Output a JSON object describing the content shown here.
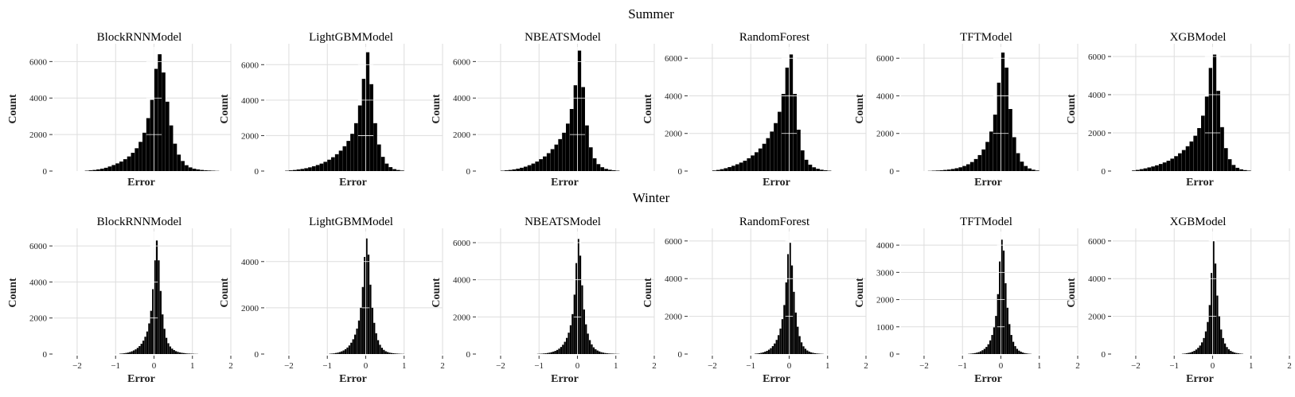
{
  "figure": {
    "row_titles": [
      "Summer",
      "Winter"
    ]
  },
  "chart_data": [
    {
      "type": "bar",
      "row": "Summer",
      "title": "BlockRNNModel",
      "xlabel": "Error",
      "ylabel": "Count",
      "ylim": [
        0,
        6800
      ],
      "yticks": [
        0,
        2000,
        4000,
        6000
      ],
      "xlim": [
        -2.6,
        2.0
      ],
      "xticks": [],
      "bin_width": 0.1,
      "bin_centers": [
        -1.75,
        -1.65,
        -1.55,
        -1.45,
        -1.35,
        -1.25,
        -1.15,
        -1.05,
        -0.95,
        -0.85,
        -0.75,
        -0.65,
        -0.55,
        -0.45,
        -0.35,
        -0.25,
        -0.15,
        -0.05,
        0.05,
        0.15,
        0.25,
        0.35,
        0.45,
        0.55,
        0.65,
        0.75,
        0.85,
        0.95,
        1.05,
        1.15,
        1.25,
        1.35,
        1.45,
        1.55,
        1.65
      ],
      "values": [
        20,
        40,
        60,
        90,
        130,
        180,
        250,
        330,
        420,
        520,
        650,
        800,
        1000,
        1250,
        1600,
        2100,
        2900,
        3900,
        5600,
        6400,
        5400,
        3800,
        2500,
        1500,
        900,
        550,
        320,
        200,
        130,
        90,
        60,
        40,
        30,
        20,
        10
      ]
    },
    {
      "type": "bar",
      "row": "Summer",
      "title": "LightGBMModel",
      "xlabel": "Error",
      "ylabel": "Count",
      "ylim": [
        0,
        7000
      ],
      "yticks": [
        0,
        2000,
        4000,
        6000
      ],
      "xlim": [
        -2.6,
        2.0
      ],
      "xticks": [],
      "bin_width": 0.1,
      "bin_centers": [
        -2.05,
        -1.95,
        -1.85,
        -1.75,
        -1.65,
        -1.55,
        -1.45,
        -1.35,
        -1.25,
        -1.15,
        -1.05,
        -0.95,
        -0.85,
        -0.75,
        -0.65,
        -0.55,
        -0.45,
        -0.35,
        -0.25,
        -0.15,
        -0.05,
        0.05,
        0.15,
        0.25,
        0.35,
        0.45,
        0.55,
        0.65,
        0.75,
        0.85,
        0.95
      ],
      "values": [
        20,
        40,
        60,
        90,
        120,
        160,
        210,
        270,
        340,
        420,
        520,
        640,
        780,
        950,
        1150,
        1400,
        1700,
        2100,
        2700,
        3700,
        5200,
        6700,
        4900,
        2700,
        1500,
        800,
        420,
        220,
        110,
        60,
        30
      ]
    },
    {
      "type": "bar",
      "row": "Summer",
      "title": "NBEATSModel",
      "xlabel": "Error",
      "ylabel": "Count",
      "ylim": [
        0,
        6800
      ],
      "yticks": [
        0,
        2000,
        4000,
        6000
      ],
      "xlim": [
        -2.6,
        2.0
      ],
      "xticks": [],
      "bin_width": 0.1,
      "bin_centers": [
        -1.95,
        -1.85,
        -1.75,
        -1.65,
        -1.55,
        -1.45,
        -1.35,
        -1.25,
        -1.15,
        -1.05,
        -0.95,
        -0.85,
        -0.75,
        -0.65,
        -0.55,
        -0.45,
        -0.35,
        -0.25,
        -0.15,
        -0.05,
        0.05,
        0.15,
        0.25,
        0.35,
        0.45,
        0.55,
        0.65,
        0.75,
        0.85,
        0.95,
        1.05
      ],
      "values": [
        20,
        40,
        60,
        90,
        130,
        180,
        240,
        320,
        410,
        520,
        650,
        800,
        980,
        1200,
        1450,
        1750,
        2100,
        2600,
        3400,
        4700,
        6600,
        4600,
        2500,
        1300,
        700,
        380,
        210,
        120,
        70,
        40,
        20
      ]
    },
    {
      "type": "bar",
      "row": "Summer",
      "title": "RandomForest",
      "xlabel": "Error",
      "ylabel": "Count",
      "ylim": [
        0,
        6600
      ],
      "yticks": [
        0,
        2000,
        4000,
        6000
      ],
      "xlim": [
        -2.6,
        2.0
      ],
      "xticks": [],
      "bin_width": 0.1,
      "bin_centers": [
        -1.95,
        -1.85,
        -1.75,
        -1.65,
        -1.55,
        -1.45,
        -1.35,
        -1.25,
        -1.15,
        -1.05,
        -0.95,
        -0.85,
        -0.75,
        -0.65,
        -0.55,
        -0.45,
        -0.35,
        -0.25,
        -0.15,
        -0.05,
        0.05,
        0.15,
        0.25,
        0.35,
        0.45,
        0.55,
        0.65,
        0.75,
        0.85,
        0.95,
        1.05
      ],
      "values": [
        30,
        60,
        100,
        150,
        210,
        280,
        360,
        450,
        550,
        680,
        830,
        1000,
        1200,
        1450,
        1750,
        2100,
        2550,
        3150,
        4100,
        5500,
        6200,
        4100,
        2200,
        1100,
        600,
        340,
        200,
        120,
        70,
        40,
        20
      ]
    },
    {
      "type": "bar",
      "row": "Summer",
      "title": "TFTModel",
      "xlabel": "Error",
      "ylabel": "Count",
      "ylim": [
        0,
        6600
      ],
      "yticks": [
        0,
        2000,
        4000,
        6000
      ],
      "xlim": [
        -2.6,
        2.0
      ],
      "xticks": [],
      "bin_width": 0.1,
      "bin_centers": [
        -1.85,
        -1.75,
        -1.65,
        -1.55,
        -1.45,
        -1.35,
        -1.25,
        -1.15,
        -1.05,
        -0.95,
        -0.85,
        -0.75,
        -0.65,
        -0.55,
        -0.45,
        -0.35,
        -0.25,
        -0.15,
        -0.05,
        0.05,
        0.15,
        0.25,
        0.35,
        0.45,
        0.55,
        0.65,
        0.75,
        0.85,
        0.95
      ],
      "values": [
        10,
        20,
        30,
        40,
        60,
        80,
        110,
        150,
        200,
        270,
        360,
        480,
        640,
        850,
        1150,
        1550,
        2100,
        3000,
        4700,
        6300,
        5500,
        3300,
        1800,
        950,
        500,
        270,
        140,
        70,
        30
      ]
    },
    {
      "type": "bar",
      "row": "Summer",
      "title": "XGBModel",
      "xlabel": "Error",
      "ylabel": "Count",
      "ylim": [
        0,
        6500
      ],
      "yticks": [
        0,
        2000,
        4000,
        6000
      ],
      "xlim": [
        -2.6,
        2.0
      ],
      "xticks": [],
      "bin_width": 0.1,
      "bin_centers": [
        -2.05,
        -1.95,
        -1.85,
        -1.75,
        -1.65,
        -1.55,
        -1.45,
        -1.35,
        -1.25,
        -1.15,
        -1.05,
        -0.95,
        -0.85,
        -0.75,
        -0.65,
        -0.55,
        -0.45,
        -0.35,
        -0.25,
        -0.15,
        -0.05,
        0.05,
        0.15,
        0.25,
        0.35,
        0.45,
        0.55,
        0.65,
        0.75,
        0.85,
        0.95
      ],
      "values": [
        30,
        60,
        100,
        140,
        190,
        240,
        300,
        370,
        450,
        540,
        650,
        780,
        930,
        1100,
        1300,
        1550,
        1850,
        2250,
        2900,
        3900,
        5400,
        6100,
        4200,
        2300,
        1200,
        620,
        320,
        170,
        90,
        50,
        25
      ]
    },
    {
      "type": "bar",
      "row": "Winter",
      "title": "BlockRNNModel",
      "xlabel": "Error",
      "ylabel": "Count",
      "ylim": [
        0,
        6800
      ],
      "yticks": [
        0,
        2000,
        4000,
        6000
      ],
      "xlim": [
        -2.6,
        2.0
      ],
      "xticks": [
        -2,
        -1,
        0,
        1,
        2
      ],
      "bin_width": 0.05,
      "bin_centers": [
        -0.875,
        -0.825,
        -0.775,
        -0.725,
        -0.675,
        -0.625,
        -0.575,
        -0.525,
        -0.475,
        -0.425,
        -0.375,
        -0.325,
        -0.275,
        -0.225,
        -0.175,
        -0.125,
        -0.075,
        -0.025,
        0.025,
        0.075,
        0.125,
        0.175,
        0.225,
        0.275,
        0.325,
        0.375,
        0.425,
        0.475,
        0.525,
        0.575,
        0.625,
        0.675,
        0.725,
        0.775,
        0.825,
        0.875,
        0.925,
        0.975,
        1.025,
        1.075,
        1.125
      ],
      "values": [
        20,
        30,
        40,
        60,
        80,
        110,
        150,
        200,
        260,
        340,
        440,
        570,
        740,
        960,
        1250,
        1700,
        2400,
        3600,
        5200,
        6300,
        5200,
        3500,
        2200,
        1400,
        900,
        600,
        420,
        300,
        220,
        160,
        120,
        90,
        70,
        55,
        40,
        30,
        25,
        20,
        15,
        10,
        8
      ]
    },
    {
      "type": "bar",
      "row": "Winter",
      "title": "LightGBMModel",
      "xlabel": "Error",
      "ylabel": "Count",
      "ylim": [
        0,
        5300
      ],
      "yticks": [
        0,
        2000,
        4000
      ],
      "xlim": [
        -2.6,
        2.0
      ],
      "xticks": [
        -2,
        -1,
        0,
        1,
        2
      ],
      "bin_width": 0.05,
      "bin_centers": [
        -0.925,
        -0.875,
        -0.825,
        -0.775,
        -0.725,
        -0.675,
        -0.625,
        -0.575,
        -0.525,
        -0.475,
        -0.425,
        -0.375,
        -0.325,
        -0.275,
        -0.225,
        -0.175,
        -0.125,
        -0.075,
        -0.025,
        0.025,
        0.075,
        0.125,
        0.175,
        0.225,
        0.275,
        0.325,
        0.375,
        0.425,
        0.475,
        0.525,
        0.575,
        0.625,
        0.675,
        0.725,
        0.775,
        0.825,
        0.875,
        0.925,
        0.975
      ],
      "values": [
        15,
        20,
        30,
        45,
        60,
        85,
        115,
        155,
        210,
        280,
        370,
        490,
        640,
        840,
        1100,
        1450,
        2000,
        2900,
        4200,
        5000,
        4300,
        3000,
        2000,
        1350,
        900,
        600,
        400,
        270,
        180,
        120,
        85,
        60,
        45,
        35,
        25,
        20,
        15,
        10,
        8
      ]
    },
    {
      "type": "bar",
      "row": "Winter",
      "title": "NBEATSModel",
      "xlabel": "Error",
      "ylabel": "Count",
      "ylim": [
        0,
        6600
      ],
      "yticks": [
        0,
        2000,
        4000,
        6000
      ],
      "xlim": [
        -2.6,
        2.0
      ],
      "xticks": [
        -2,
        -1,
        0,
        1,
        2
      ],
      "bin_width": 0.05,
      "bin_centers": [
        -1.025,
        -0.975,
        -0.925,
        -0.875,
        -0.825,
        -0.775,
        -0.725,
        -0.675,
        -0.625,
        -0.575,
        -0.525,
        -0.475,
        -0.425,
        -0.375,
        -0.325,
        -0.275,
        -0.225,
        -0.175,
        -0.125,
        -0.075,
        -0.025,
        0.025,
        0.075,
        0.125,
        0.175,
        0.225,
        0.275,
        0.325,
        0.375,
        0.425,
        0.475,
        0.525,
        0.575,
        0.625,
        0.675,
        0.725,
        0.775,
        0.825,
        0.875,
        0.925,
        0.975,
        1.025,
        1.075
      ],
      "values": [
        10,
        15,
        20,
        30,
        40,
        55,
        75,
        100,
        130,
        170,
        220,
        290,
        380,
        500,
        660,
        870,
        1150,
        1550,
        2150,
        3200,
        4900,
        6200,
        5300,
        3700,
        2400,
        1600,
        1100,
        750,
        520,
        360,
        260,
        190,
        140,
        100,
        75,
        55,
        40,
        30,
        25,
        20,
        15,
        10,
        8
      ]
    },
    {
      "type": "bar",
      "row": "Winter",
      "title": "RandomForest",
      "xlabel": "Error",
      "ylabel": "Count",
      "ylim": [
        0,
        6500
      ],
      "yticks": [
        0,
        2000,
        4000,
        6000
      ],
      "xlim": [
        -2.6,
        2.0
      ],
      "xticks": [
        -2,
        -1,
        0,
        1,
        2
      ],
      "bin_width": 0.05,
      "bin_centers": [
        -0.875,
        -0.825,
        -0.775,
        -0.725,
        -0.675,
        -0.625,
        -0.575,
        -0.525,
        -0.475,
        -0.425,
        -0.375,
        -0.325,
        -0.275,
        -0.225,
        -0.175,
        -0.125,
        -0.075,
        -0.025,
        0.025,
        0.075,
        0.125,
        0.175,
        0.225,
        0.275,
        0.325,
        0.375,
        0.425,
        0.475,
        0.525,
        0.575,
        0.625,
        0.675,
        0.725,
        0.775,
        0.825,
        0.875
      ],
      "values": [
        20,
        30,
        45,
        65,
        90,
        125,
        170,
        230,
        310,
        420,
        560,
        750,
        1000,
        1350,
        1850,
        2600,
        3800,
        5300,
        5900,
        4700,
        3300,
        2200,
        1450,
        950,
        620,
        410,
        280,
        190,
        130,
        90,
        65,
        45,
        32,
        22,
        15,
        10
      ]
    },
    {
      "type": "bar",
      "row": "Winter",
      "title": "TFTModel",
      "xlabel": "Error",
      "ylabel": "Count",
      "ylim": [
        0,
        4500
      ],
      "yticks": [
        0,
        1000,
        2000,
        3000,
        4000
      ],
      "xlim": [
        -2.6,
        2.0
      ],
      "xticks": [
        -2,
        -1,
        0,
        1,
        2
      ],
      "bin_width": 0.05,
      "bin_centers": [
        -0.825,
        -0.775,
        -0.725,
        -0.675,
        -0.625,
        -0.575,
        -0.525,
        -0.475,
        -0.425,
        -0.375,
        -0.325,
        -0.275,
        -0.225,
        -0.175,
        -0.125,
        -0.075,
        -0.025,
        0.025,
        0.075,
        0.125,
        0.175,
        0.225,
        0.275,
        0.325,
        0.375,
        0.425,
        0.475,
        0.525,
        0.575,
        0.625,
        0.675,
        0.725,
        0.775
      ],
      "values": [
        10,
        15,
        25,
        35,
        50,
        70,
        100,
        140,
        190,
        260,
        360,
        500,
        700,
        980,
        1400,
        2200,
        3400,
        4200,
        3800,
        2600,
        1700,
        1100,
        700,
        450,
        290,
        190,
        125,
        85,
        55,
        35,
        22,
        14,
        8
      ]
    },
    {
      "type": "bar",
      "row": "Winter",
      "title": "XGBModel",
      "xlabel": "Error",
      "ylabel": "Count",
      "ylim": [
        0,
        6500
      ],
      "yticks": [
        0,
        2000,
        4000,
        6000
      ],
      "xlim": [
        -2.6,
        2.0
      ],
      "xticks": [
        -2,
        -1,
        0,
        1,
        2
      ],
      "bin_width": 0.05,
      "bin_centers": [
        -0.775,
        -0.725,
        -0.675,
        -0.625,
        -0.575,
        -0.525,
        -0.475,
        -0.425,
        -0.375,
        -0.325,
        -0.275,
        -0.225,
        -0.175,
        -0.125,
        -0.075,
        -0.025,
        0.025,
        0.075,
        0.125,
        0.175,
        0.225,
        0.275,
        0.325,
        0.375,
        0.425,
        0.475,
        0.525,
        0.575,
        0.625,
        0.675,
        0.725,
        0.775
      ],
      "values": [
        15,
        25,
        40,
        60,
        85,
        120,
        170,
        240,
        330,
        450,
        620,
        850,
        1200,
        1700,
        2600,
        4300,
        6000,
        4800,
        3100,
        2000,
        1300,
        850,
        560,
        370,
        250,
        170,
        115,
        80,
        55,
        38,
        25,
        15
      ]
    }
  ]
}
